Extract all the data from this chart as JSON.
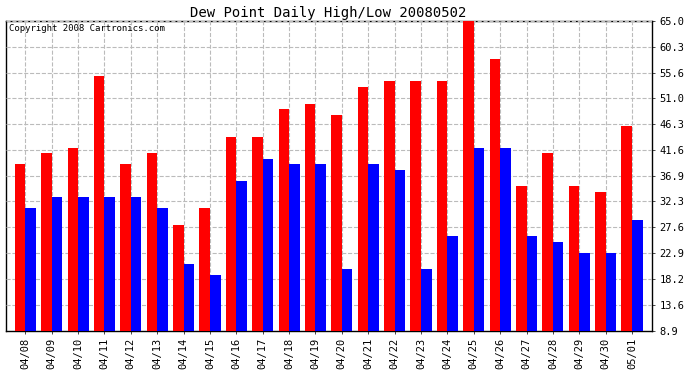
{
  "title": "Dew Point Daily High/Low 20080502",
  "copyright": "Copyright 2008 Cartronics.com",
  "categories": [
    "04/08",
    "04/09",
    "04/10",
    "04/11",
    "04/12",
    "04/13",
    "04/14",
    "04/15",
    "04/16",
    "04/17",
    "04/18",
    "04/19",
    "04/20",
    "04/21",
    "04/22",
    "04/23",
    "04/24",
    "04/25",
    "04/26",
    "04/27",
    "04/28",
    "04/29",
    "04/30",
    "05/01"
  ],
  "high_values": [
    39.0,
    41.0,
    42.0,
    55.0,
    39.0,
    41.0,
    28.0,
    31.0,
    44.0,
    44.0,
    49.0,
    50.0,
    48.0,
    53.0,
    54.0,
    54.0,
    54.0,
    65.0,
    58.0,
    35.0,
    41.0,
    35.0,
    34.0,
    46.0
  ],
  "low_values": [
    31.0,
    33.0,
    33.0,
    33.0,
    33.0,
    31.0,
    21.0,
    19.0,
    36.0,
    40.0,
    39.0,
    39.0,
    20.0,
    39.0,
    38.0,
    20.0,
    26.0,
    42.0,
    42.0,
    26.0,
    25.0,
    23.0,
    23.0,
    29.0
  ],
  "high_color": "#ff0000",
  "low_color": "#0000ff",
  "bg_color": "#ffffff",
  "plot_bg_color": "#ffffff",
  "ytick_labels": [
    "8.9",
    "13.6",
    "18.2",
    "22.9",
    "27.6",
    "32.3",
    "36.9",
    "41.6",
    "46.3",
    "51.0",
    "55.6",
    "60.3",
    "65.0"
  ],
  "ytick_values": [
    8.9,
    13.6,
    18.2,
    22.9,
    27.6,
    32.3,
    36.9,
    41.6,
    46.3,
    51.0,
    55.6,
    60.3,
    65.0
  ],
  "ymin": 8.9,
  "ymax": 65.0,
  "grid_color": "#bbbbbb",
  "grid_style": "--"
}
